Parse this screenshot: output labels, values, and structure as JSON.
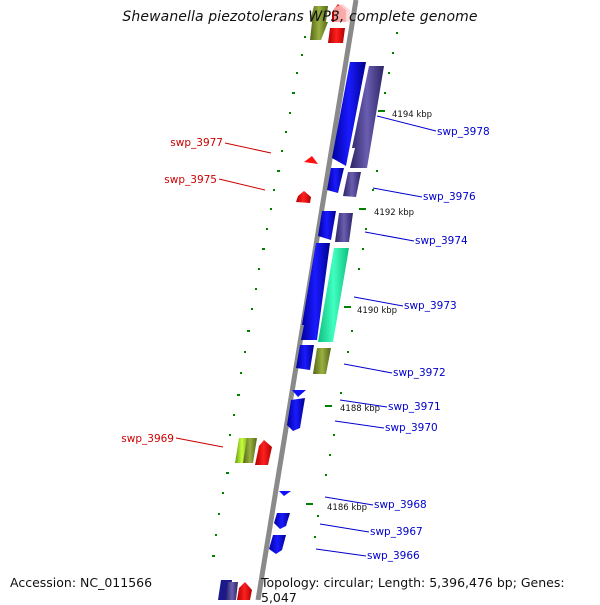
{
  "title": "Shewanella piezotolerans WP3, complete genome",
  "footer": {
    "accession": "Accession: NC_011566",
    "topology": "Topology: circular; Length: 5,396,476 bp; Genes: 5,047"
  },
  "scale_labels": [
    "4194 kbp",
    "4192 kbp",
    "4190 kbp",
    "4188 kbp",
    "4186 kbp"
  ],
  "gene_labels_right": [
    "swp_3978",
    "swp_3976",
    "swp_3974",
    "swp_3973",
    "swp_3972",
    "swp_3971",
    "swp_3970",
    "swp_3968",
    "swp_3967",
    "swp_3966"
  ],
  "gene_labels_left": [
    "swp_3977",
    "swp_3975",
    "swp_3969"
  ],
  "colors": {
    "backbone": "#8a8a8a",
    "forward_gene": "#1010ff",
    "reverse_gene": "#ff1010",
    "forward_label": "#0000cc",
    "reverse_label": "#cc0000",
    "scale_tick": "#008000",
    "purple": "#4a3d8f",
    "teal": "#20f0a0",
    "olive": "#7a8f28",
    "lime": "#99cc22",
    "navy": "#1a1a8a"
  }
}
